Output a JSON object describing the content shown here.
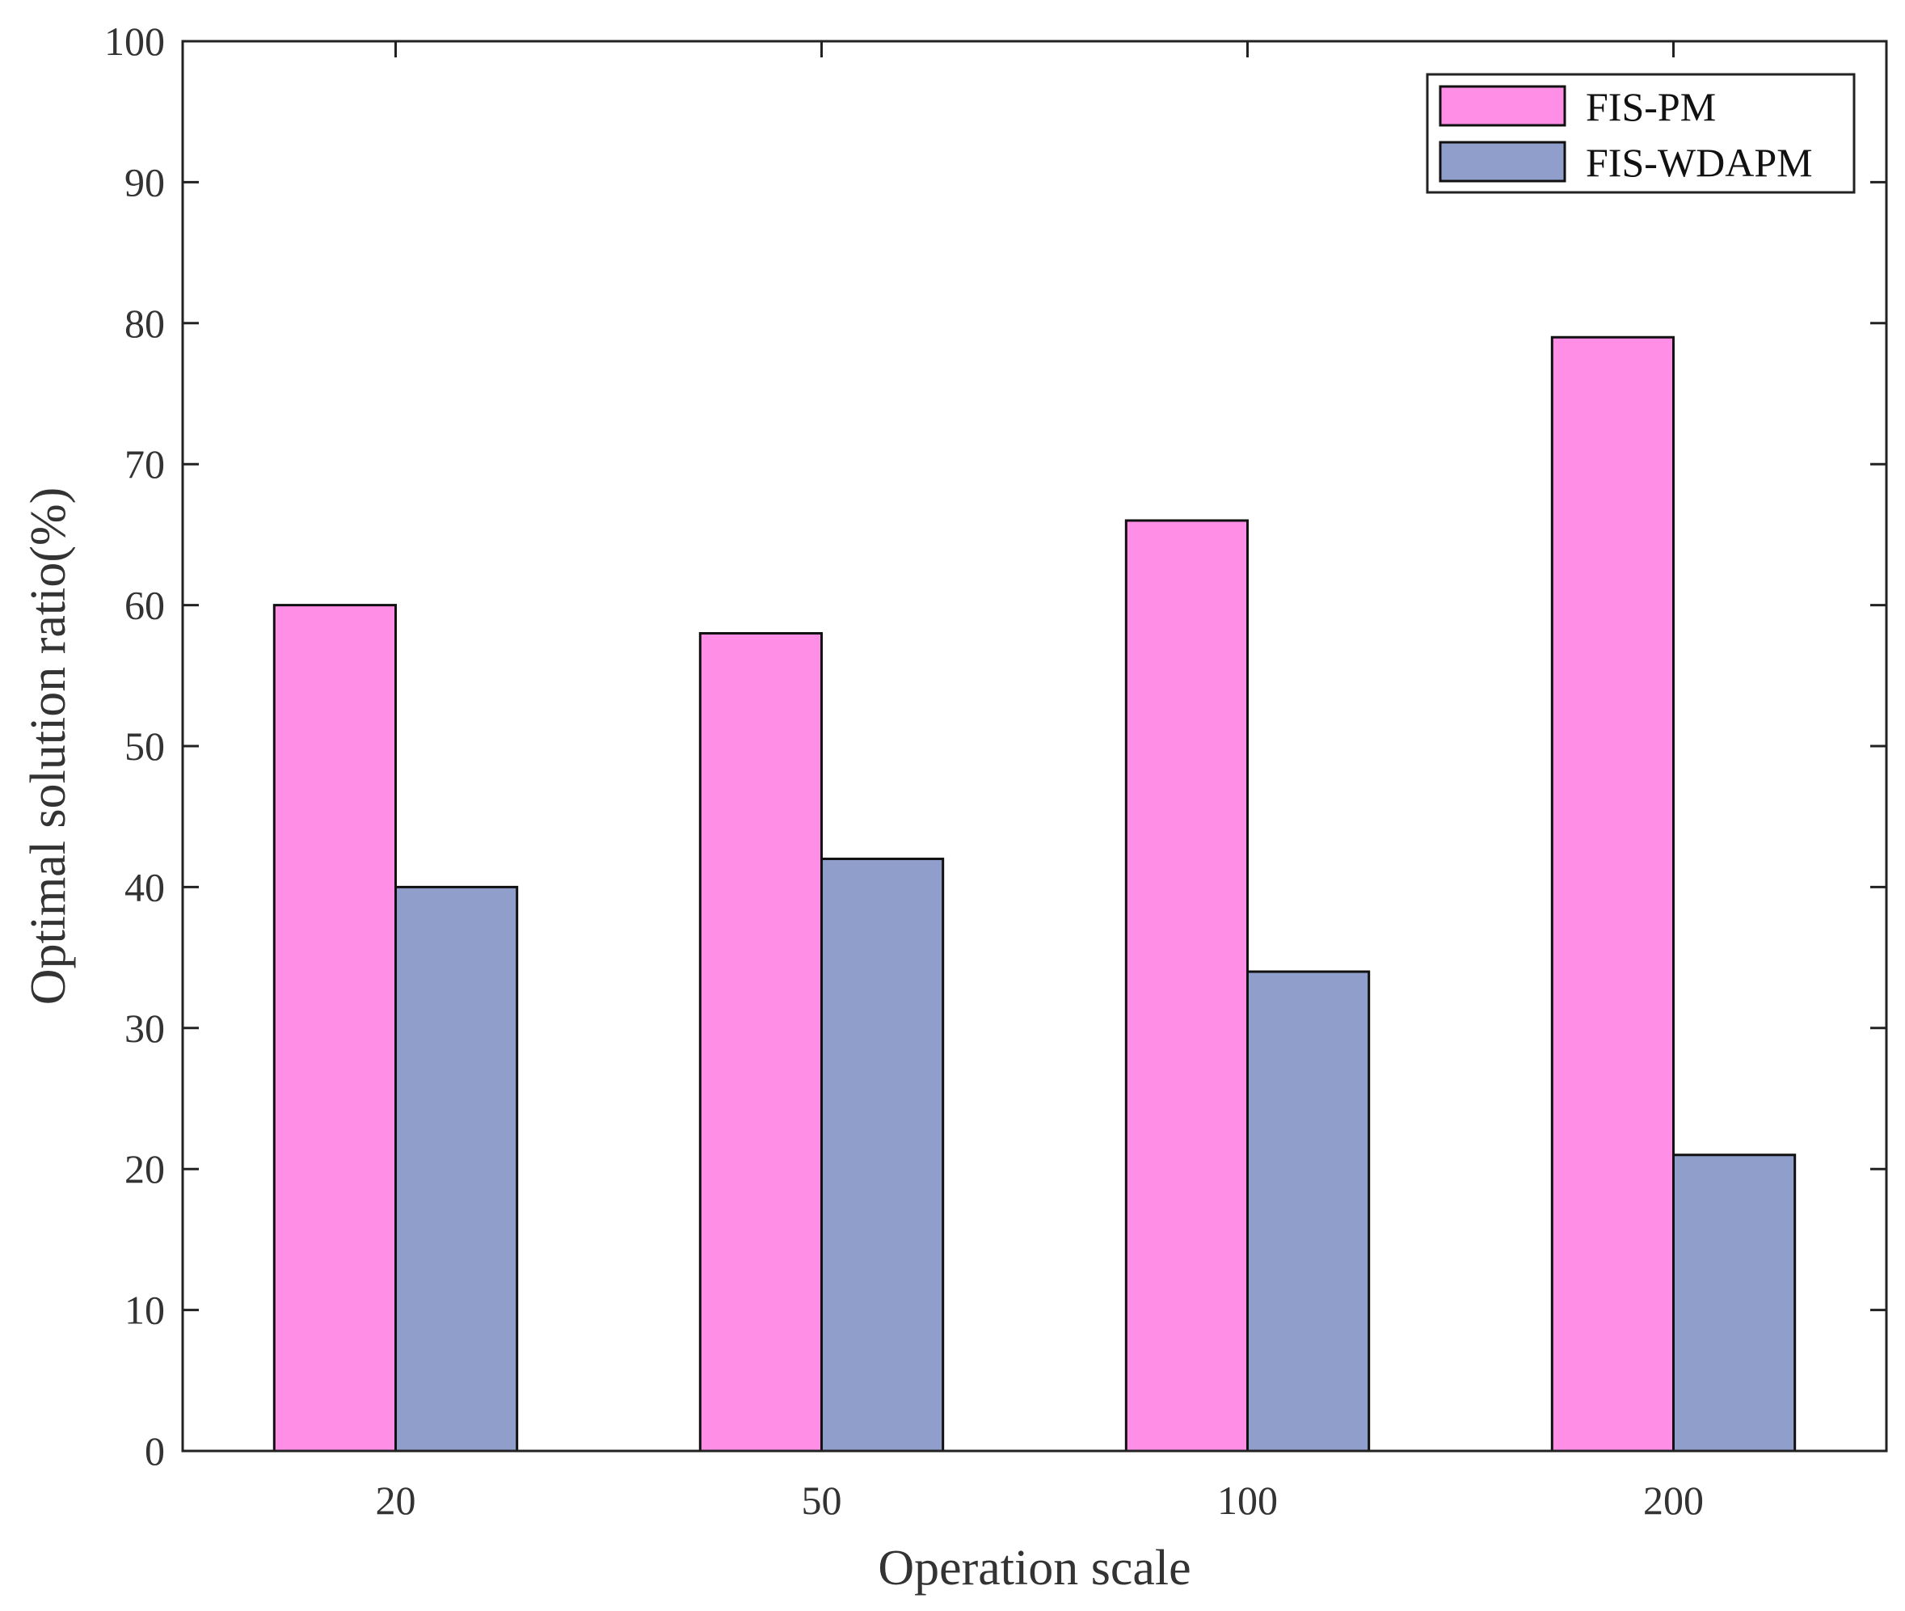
{
  "chart_data": {
    "type": "bar",
    "title": "",
    "xlabel": "Operation scale",
    "ylabel": "Optimal solution ratio(%)",
    "categories": [
      "20",
      "50",
      "100",
      "200"
    ],
    "series": [
      {
        "name": "FIS-PM",
        "values": [
          60,
          58,
          66,
          79
        ],
        "color": "#ff8ee6"
      },
      {
        "name": "FIS-WDAPM",
        "values": [
          40,
          42,
          34,
          21
        ],
        "color": "#909ecb"
      }
    ],
    "ylim": [
      0,
      100
    ],
    "yticks": [
      0,
      10,
      20,
      30,
      40,
      50,
      60,
      70,
      80,
      90,
      100
    ],
    "grid": false,
    "legend_position": "top-right"
  }
}
